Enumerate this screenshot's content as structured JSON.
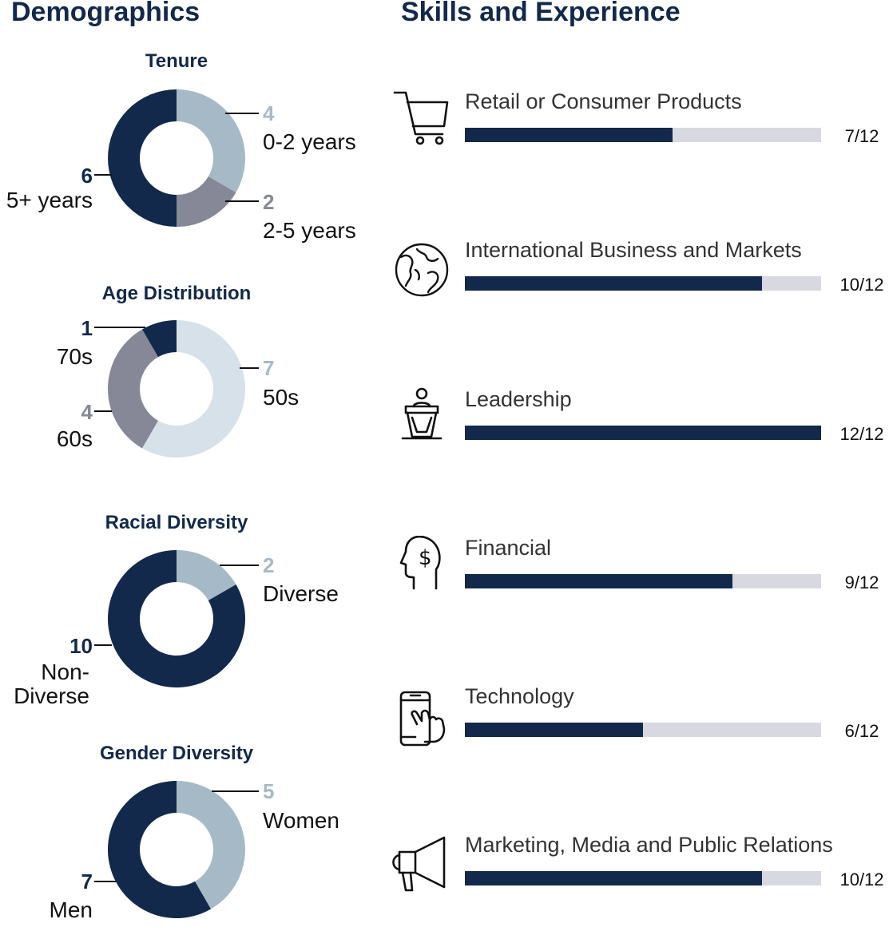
{
  "headings": {
    "demographics": "Demographics",
    "skills": "Skills and Experience"
  },
  "colors": {
    "navy": "#13294b",
    "light_blue": "#a6b9c6",
    "gray": "#868897",
    "pale": "#d7e1e9",
    "track": "#d8d8e0"
  },
  "chart_data": [
    {
      "type": "pie",
      "title": "Tenure",
      "slices": [
        {
          "count": "4",
          "label": "0-2 years",
          "value": 4,
          "color": "#a6b9c6",
          "num_color": "#a6b9c6"
        },
        {
          "count": "2",
          "label": "2-5 years",
          "value": 2,
          "color": "#868897",
          "num_color": "#868897"
        },
        {
          "count": "6",
          "label": "5+ years",
          "value": 6,
          "color": "#13294b",
          "num_color": "#13294b"
        }
      ]
    },
    {
      "type": "pie",
      "title": "Age Distribution",
      "slices": [
        {
          "count": "7",
          "label": "50s",
          "value": 7,
          "color": "#d7e1e9",
          "num_color": "#a6b9c6"
        },
        {
          "count": "4",
          "label": "60s",
          "value": 4,
          "color": "#868897",
          "num_color": "#868897"
        },
        {
          "count": "1",
          "label": "70s",
          "value": 1,
          "color": "#13294b",
          "num_color": "#13294b"
        }
      ]
    },
    {
      "type": "pie",
      "title": "Racial Diversity",
      "slices": [
        {
          "count": "2",
          "label": "Diverse",
          "value": 2,
          "color": "#a6b9c6",
          "num_color": "#a6b9c6"
        },
        {
          "count": "10",
          "label": "Non-Diverse",
          "value": 10,
          "color": "#13294b",
          "num_color": "#13294b"
        }
      ]
    },
    {
      "type": "pie",
      "title": "Gender Diversity",
      "slices": [
        {
          "count": "5",
          "label": "Women",
          "value": 5,
          "color": "#a6b9c6",
          "num_color": "#a6b9c6"
        },
        {
          "count": "7",
          "label": "Men",
          "value": 7,
          "color": "#13294b",
          "num_color": "#13294b"
        }
      ]
    },
    {
      "type": "bar",
      "title": "Skills and Experience",
      "max": 12,
      "items": [
        {
          "label": "Retail or Consumer Products",
          "value": 7,
          "count": "7/12",
          "icon": "shopping-cart-icon"
        },
        {
          "label": "International Business and Markets",
          "value": 10,
          "count": "10/12",
          "icon": "globe-icon"
        },
        {
          "label": "Leadership",
          "value": 12,
          "count": "12/12",
          "icon": "podium-speaker-icon"
        },
        {
          "label": "Financial",
          "value": 9,
          "count": "9/12",
          "icon": "head-dollar-icon"
        },
        {
          "label": "Technology",
          "value": 6,
          "count": "6/12",
          "icon": "phone-touch-icon"
        },
        {
          "label": "Marketing, Media and Public Relations",
          "value": 10,
          "count": "10/12",
          "icon": "megaphone-icon"
        }
      ]
    }
  ]
}
